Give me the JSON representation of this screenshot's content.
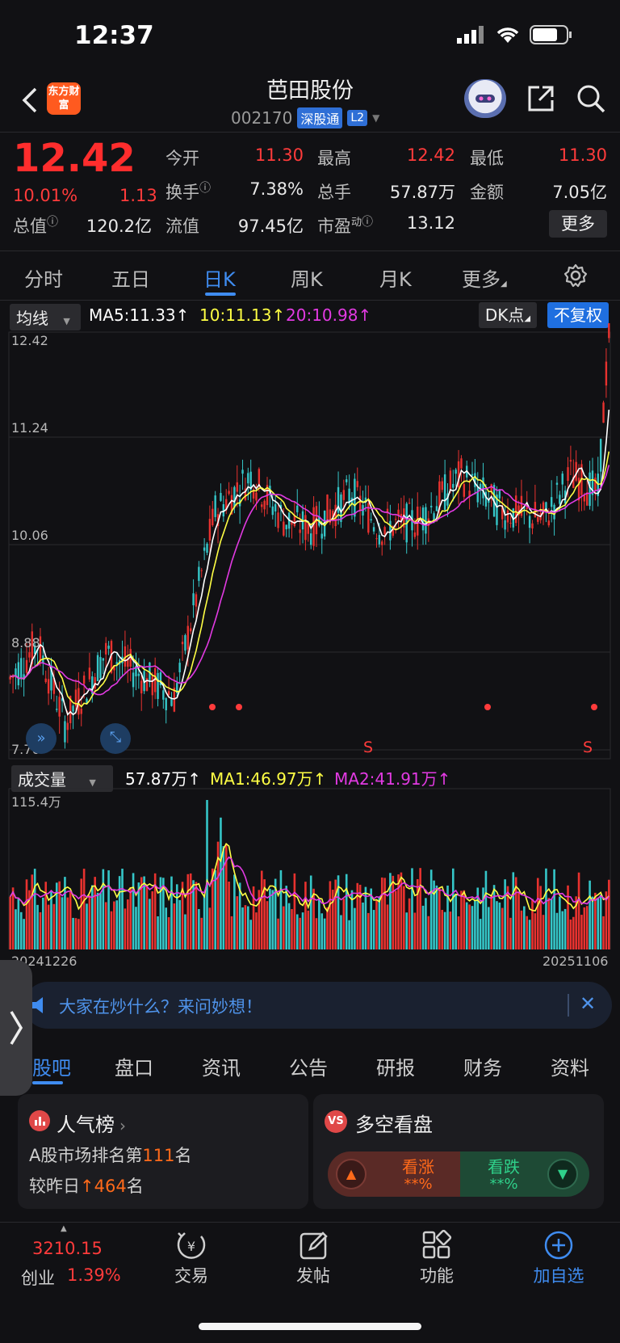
{
  "status": {
    "time": "12:37"
  },
  "header": {
    "logo_text": "东方财富",
    "stock_name": "芭田股份",
    "stock_code": "002170",
    "tag_connect": "深股通",
    "tag_level": "L2"
  },
  "quote": {
    "price": "12.42",
    "change_pct": "10.01%",
    "change": "1.13",
    "open_label": "今开",
    "open": "11.30",
    "high_label": "最高",
    "high": "12.42",
    "low_label": "最低",
    "low": "11.30",
    "turnover_rate_label": "换手",
    "turnover_rate": "7.38%",
    "volume_label": "总手",
    "volume": "57.87万",
    "amount_label": "金额",
    "amount": "7.05亿",
    "mktcap_label": "总值",
    "mktcap": "120.2亿",
    "float_cap_label": "流值",
    "float_cap": "97.45亿",
    "pe_label": "市盈",
    "pe_sup": "动",
    "pe": "13.12",
    "more": "更多"
  },
  "period_tabs": [
    "分时",
    "五日",
    "日K",
    "周K",
    "月K",
    "更多"
  ],
  "active_period": "日K",
  "ma_row": {
    "dropdown": "均线",
    "ma5": "MA5:11.33",
    "ma10": "10:11.13",
    "ma20": "20:10.98",
    "dk_button": "DK点",
    "adjust_button": "不复权"
  },
  "colors": {
    "ma5": "#ffffff",
    "ma10": "#ffff44",
    "ma20": "#e23ae2",
    "up": "#e8322f",
    "down": "#35c6c8",
    "accent": "#3f8cf0"
  },
  "price_axis": [
    "12.42",
    "11.24",
    "10.06",
    "8.88",
    "7.70"
  ],
  "dk_markers": [
    "S",
    "S"
  ],
  "volume_row": {
    "dropdown": "成交量",
    "vol": "57.87万",
    "ma1": "MA1:46.97万",
    "ma2": "MA2:41.91万",
    "max_label": "115.4万"
  },
  "date_axis": {
    "start": "20241226",
    "end": "20251106"
  },
  "chart_data": {
    "type": "candlestick",
    "x_start": "20241226",
    "x_end": "20251106",
    "ylim": [
      7.7,
      12.42
    ],
    "last_close": 12.42,
    "volume_max": "115.4万"
  },
  "ask_banner": {
    "text": "大家在炒什么？来问妙想！"
  },
  "bottom_tabs": [
    "股吧",
    "盘口",
    "资讯",
    "公告",
    "研报",
    "财务",
    "资料"
  ],
  "popularity_card": {
    "title": "人气榜",
    "line1_prefix": "A股市场排名第",
    "rank": "111",
    "line1_suffix": "名",
    "line2_prefix": "较昨日",
    "delta": "464",
    "line2_suffix": "名"
  },
  "sentiment_card": {
    "title": "多空看盘",
    "bull_label": "看涨",
    "bull_value": "**%",
    "bear_label": "看跌",
    "bear_value": "**%"
  },
  "bottom_nav": {
    "index_value": "3210.15",
    "index_name": "创业",
    "index_pct": "1.39%",
    "trade": "交易",
    "post": "发帖",
    "features": "功能",
    "add_watch": "加自选"
  }
}
